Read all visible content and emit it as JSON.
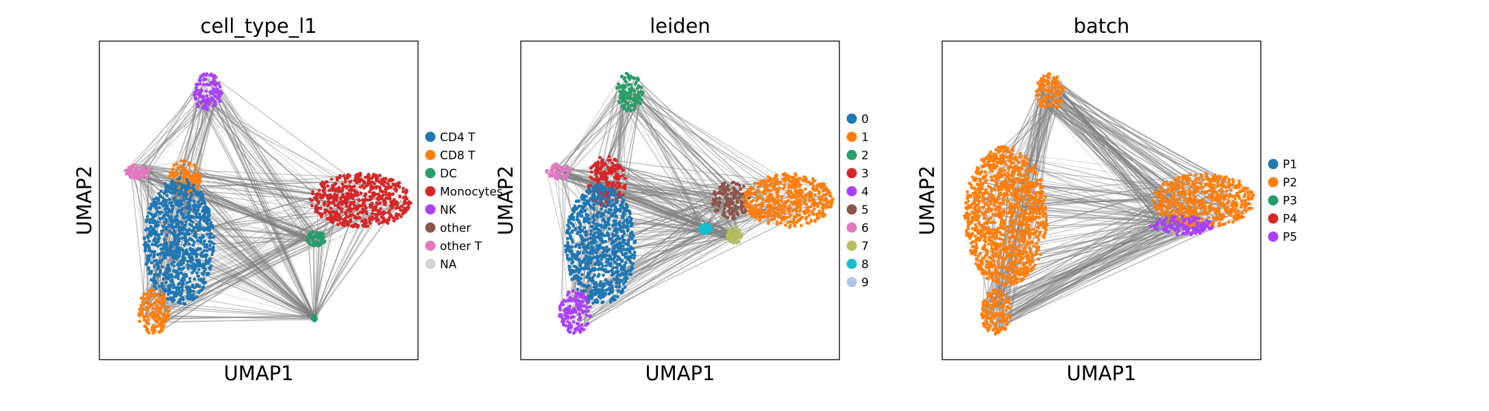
{
  "chart_data": [
    {
      "type": "scatter",
      "title": "cell_type_l1",
      "xlabel": "UMAP1",
      "ylabel": "UMAP2",
      "xticks": [],
      "yticks": [],
      "grid": false,
      "edges": "gray PAGA-style connectivity lines drawn behind points",
      "legend_position": "right",
      "legend": [
        {
          "label": "CD4 T",
          "color": "#1f77b4"
        },
        {
          "label": "CD8 T",
          "color": "#ff7f0e"
        },
        {
          "label": "DC",
          "color": "#279e68"
        },
        {
          "label": "Monocytes",
          "color": "#d62728"
        },
        {
          "label": "NK",
          "color": "#aa40fc"
        },
        {
          "label": "other",
          "color": "#8c564b"
        },
        {
          "label": "other T",
          "color": "#e377c2"
        },
        {
          "label": "NA",
          "color": "#d3d3d3"
        }
      ],
      "groups": [
        {
          "label": "NK",
          "x": 0.34,
          "y": 0.84,
          "rx": 0.045,
          "ry": 0.06
        },
        {
          "label": "other T",
          "x": 0.12,
          "y": 0.59,
          "rx": 0.04,
          "ry": 0.025
        },
        {
          "label": "CD8 T",
          "x": 0.27,
          "y": 0.57,
          "rx": 0.05,
          "ry": 0.06
        },
        {
          "label": "CD4 T",
          "x": 0.25,
          "y": 0.37,
          "rx": 0.11,
          "ry": 0.2
        },
        {
          "label": "CD8 T",
          "x": 0.17,
          "y": 0.15,
          "rx": 0.05,
          "ry": 0.07
        },
        {
          "label": "Monocytes",
          "x": 0.82,
          "y": 0.5,
          "rx": 0.16,
          "ry": 0.085
        },
        {
          "label": "DC",
          "x": 0.68,
          "y": 0.38,
          "rx": 0.03,
          "ry": 0.025
        },
        {
          "label": "DC",
          "x": 0.675,
          "y": 0.13,
          "rx": 0.006,
          "ry": 0.008
        }
      ]
    },
    {
      "type": "scatter",
      "title": "leiden",
      "xlabel": "UMAP1",
      "ylabel": "UMAP2",
      "xticks": [],
      "yticks": [],
      "grid": false,
      "edges": "gray PAGA-style connectivity lines drawn behind points",
      "legend_position": "right",
      "legend": [
        {
          "label": "0",
          "color": "#1f77b4"
        },
        {
          "label": "1",
          "color": "#ff7f0e"
        },
        {
          "label": "2",
          "color": "#279e68"
        },
        {
          "label": "3",
          "color": "#d62728"
        },
        {
          "label": "4",
          "color": "#aa40fc"
        },
        {
          "label": "5",
          "color": "#8c564b"
        },
        {
          "label": "6",
          "color": "#e377c2"
        },
        {
          "label": "7",
          "color": "#b5bd61"
        },
        {
          "label": "8",
          "color": "#17becf"
        },
        {
          "label": "9",
          "color": "#aec7e8"
        }
      ],
      "groups": [
        {
          "label": "2",
          "x": 0.34,
          "y": 0.84,
          "rx": 0.045,
          "ry": 0.06
        },
        {
          "label": "6",
          "x": 0.12,
          "y": 0.59,
          "rx": 0.04,
          "ry": 0.025
        },
        {
          "label": "3",
          "x": 0.27,
          "y": 0.56,
          "rx": 0.06,
          "ry": 0.08
        },
        {
          "label": "0",
          "x": 0.25,
          "y": 0.36,
          "rx": 0.11,
          "ry": 0.19
        },
        {
          "label": "4",
          "x": 0.17,
          "y": 0.15,
          "rx": 0.05,
          "ry": 0.07
        },
        {
          "label": "5",
          "x": 0.66,
          "y": 0.5,
          "rx": 0.06,
          "ry": 0.06
        },
        {
          "label": "1",
          "x": 0.84,
          "y": 0.5,
          "rx": 0.14,
          "ry": 0.085
        },
        {
          "label": "7",
          "x": 0.67,
          "y": 0.39,
          "rx": 0.025,
          "ry": 0.025
        },
        {
          "label": "8",
          "x": 0.58,
          "y": 0.41,
          "rx": 0.02,
          "ry": 0.015
        }
      ]
    },
    {
      "type": "scatter",
      "title": "batch",
      "xlabel": "UMAP1",
      "ylabel": "UMAP2",
      "xticks": [],
      "yticks": [],
      "grid": false,
      "edges": "gray PAGA-style connectivity lines drawn behind points",
      "legend_position": "right",
      "legend": [
        {
          "label": "P1",
          "color": "#1f77b4"
        },
        {
          "label": "P2",
          "color": "#ff7f0e"
        },
        {
          "label": "P3",
          "color": "#279e68"
        },
        {
          "label": "P4",
          "color": "#d62728"
        },
        {
          "label": "P5",
          "color": "#aa40fc"
        }
      ],
      "groups": [
        {
          "label": "P2",
          "x": 0.34,
          "y": 0.84,
          "rx": 0.045,
          "ry": 0.06
        },
        {
          "label": "P2",
          "x": 0.2,
          "y": 0.45,
          "rx": 0.13,
          "ry": 0.22
        },
        {
          "label": "P2",
          "x": 0.17,
          "y": 0.15,
          "rx": 0.05,
          "ry": 0.07
        },
        {
          "label": "P2",
          "x": 0.82,
          "y": 0.5,
          "rx": 0.16,
          "ry": 0.085
        },
        {
          "label": "P5",
          "x": 0.75,
          "y": 0.42,
          "rx": 0.1,
          "ry": 0.03
        }
      ]
    }
  ]
}
